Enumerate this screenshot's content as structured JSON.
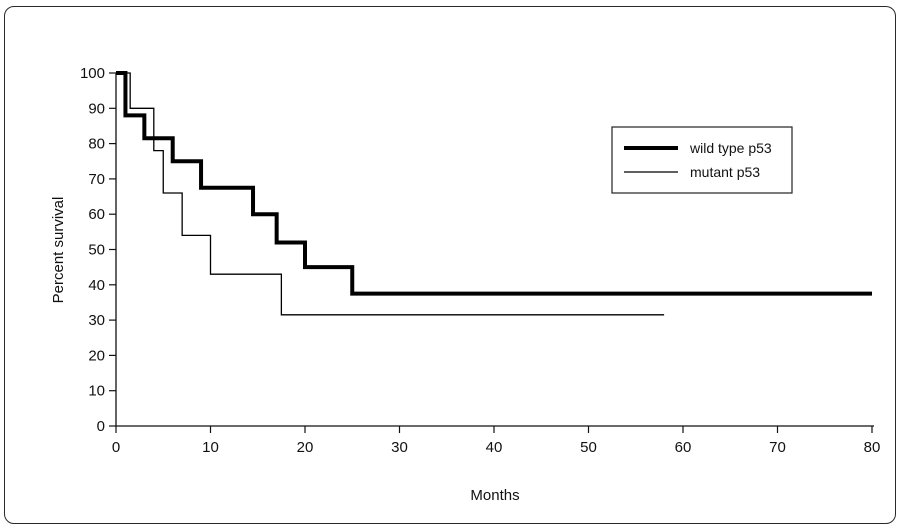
{
  "chart_data": {
    "type": "line",
    "xlabel": "Months",
    "ylabel": "Percent survival",
    "xlim": [
      0,
      80
    ],
    "ylim": [
      0,
      100
    ],
    "xticks": [
      0,
      10,
      20,
      30,
      40,
      50,
      60,
      70,
      80
    ],
    "yticks": [
      0,
      10,
      20,
      30,
      40,
      50,
      60,
      70,
      80,
      90,
      100
    ],
    "grid": false,
    "legend_position": "top-right",
    "step": true,
    "series": [
      {
        "name": "wild type p53",
        "color": "#000000",
        "x": [
          0,
          1,
          3,
          6,
          9,
          14.5,
          17,
          20,
          25,
          80
        ],
        "y": [
          100,
          88,
          81.5,
          75,
          67.5,
          60,
          52,
          45,
          37.5,
          37.5
        ]
      },
      {
        "name": "mutant p53",
        "color": "#000000",
        "x": [
          0,
          1.5,
          4,
          5,
          7,
          10,
          17.5,
          58
        ],
        "y": [
          100,
          90,
          78,
          66,
          54,
          43,
          31.5,
          31.5
        ]
      }
    ]
  }
}
